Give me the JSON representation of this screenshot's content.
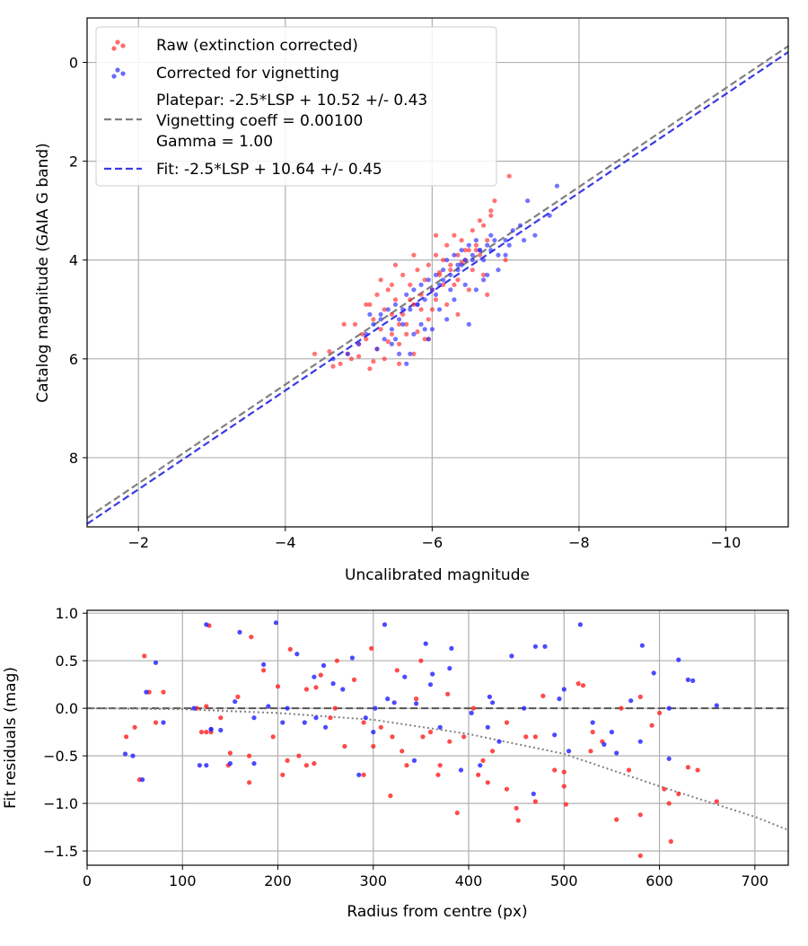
{
  "chart_data": [
    {
      "type": "scatter",
      "title": "",
      "xlabel": "Uncalibrated magnitude",
      "ylabel": "Catalog magnitude (GAIA G band)",
      "xlim": [
        -1.3,
        -10.85
      ],
      "ylim": [
        9.4,
        -0.9
      ],
      "x_ticks": [
        -2,
        -4,
        -6,
        -8,
        -10
      ],
      "x_tick_labels": [
        "−2",
        "−4",
        "−6",
        "−8",
        "−10"
      ],
      "y_ticks": [
        0,
        2,
        4,
        6,
        8
      ],
      "y_tick_labels": [
        "0",
        "2",
        "4",
        "6",
        "8"
      ],
      "grid": true,
      "legend_position": "top-left",
      "legend": [
        {
          "label": "Raw (extinction corrected)",
          "kind": "scatter",
          "color": "#ff2a2a"
        },
        {
          "label": "Corrected for vignetting",
          "kind": "scatter",
          "color": "#2a2aff"
        },
        {
          "label_lines": [
            "Platepar: -2.5*LSP + 10.52 +/- 0.43",
            "Vignetting coeff = 0.00100",
            "Gamma = 1.00"
          ],
          "kind": "dashed",
          "color": "#808080"
        },
        {
          "label": "Fit: -2.5*LSP + 10.64 +/- 0.45",
          "kind": "dashed",
          "color": "#3a3ae8"
        }
      ],
      "lines": [
        {
          "name": "Platepar",
          "intercept": 10.52,
          "slope": 1.0,
          "color": "#808080"
        },
        {
          "name": "Fit",
          "intercept": 10.64,
          "slope": 1.0,
          "color": "#3a3ae8"
        }
      ],
      "series": [
        {
          "name": "Raw (extinction corrected)",
          "color": "#ff2a2a",
          "x": [
            -4.4,
            -4.65,
            -4.6,
            -4.75,
            -4.9,
            -5.0,
            -4.95,
            -5.1,
            -5.15,
            -5.2,
            -5.25,
            -5.3,
            -5.35,
            -5.4,
            -5.45,
            -5.5,
            -5.55,
            -5.6,
            -5.65,
            -5.7,
            -5.75,
            -5.8,
            -5.85,
            -5.9,
            -5.95,
            -6.0,
            -6.05,
            -6.1,
            -6.15,
            -6.2,
            -6.25,
            -6.3,
            -6.35,
            -6.4,
            -6.45,
            -6.5,
            -6.55,
            -6.6,
            -6.65,
            -6.7,
            -6.75,
            -6.8,
            -6.85,
            -5.25,
            -5.35,
            -5.45,
            -5.55,
            -5.65,
            -5.75,
            -5.85,
            -5.95,
            -6.05,
            -6.15,
            -6.25,
            -6.35,
            -6.45,
            -6.55,
            -6.65,
            -5.15,
            -5.05,
            -5.6,
            -5.9,
            -6.2,
            -6.5,
            -6.8,
            -5.3,
            -5.5,
            -5.7,
            -6.0,
            -6.3,
            -6.6,
            -7.0,
            -5.0,
            -5.2,
            -5.4,
            -5.8,
            -6.1,
            -6.4,
            -6.7,
            -4.8,
            -4.85,
            -5.55,
            -5.95,
            -6.35,
            -6.75,
            -7.05,
            -5.1,
            -5.45,
            -5.75,
            -6.05
          ],
          "y": [
            5.9,
            6.15,
            5.85,
            6.1,
            6.0,
            5.7,
            5.3,
            5.6,
            4.9,
            5.2,
            4.7,
            5.4,
            5.0,
            4.6,
            5.1,
            4.8,
            5.3,
            4.3,
            5.5,
            4.5,
            4.9,
            4.2,
            4.7,
            4.4,
            4.1,
            4.6,
            3.9,
            4.3,
            4.0,
            3.7,
            4.2,
            3.5,
            3.9,
            3.6,
            4.0,
            3.8,
            3.4,
            3.7,
            3.9,
            3.3,
            3.6,
            3.1,
            2.8,
            5.8,
            6.0,
            5.5,
            5.7,
            5.3,
            5.9,
            5.0,
            5.2,
            4.8,
            4.5,
            4.1,
            4.4,
            3.8,
            4.2,
            3.2,
            6.2,
            5.5,
            5.1,
            5.6,
            4.9,
            4.6,
            3.0,
            4.4,
            4.1,
            4.8,
            5.0,
            4.5,
            3.8,
            4.0,
            5.95,
            6.05,
            5.65,
            5.45,
            4.25,
            4.05,
            4.3,
            5.3,
            5.9,
            6.1,
            5.6,
            5.1,
            4.7,
            2.3,
            4.9,
            4.5,
            3.9,
            3.5
          ]
        },
        {
          "name": "Corrected for vignetting",
          "color": "#2a2aff",
          "x": [
            -4.65,
            -4.85,
            -5.0,
            -5.1,
            -5.2,
            -5.25,
            -5.3,
            -5.35,
            -5.4,
            -5.45,
            -5.5,
            -5.55,
            -5.6,
            -5.65,
            -5.7,
            -5.75,
            -5.8,
            -5.85,
            -5.9,
            -5.95,
            -6.0,
            -6.05,
            -6.1,
            -6.15,
            -6.2,
            -6.25,
            -6.3,
            -6.35,
            -6.4,
            -6.45,
            -6.5,
            -6.55,
            -6.6,
            -6.65,
            -6.7,
            -6.75,
            -6.8,
            -6.9,
            -7.0,
            -7.1,
            -7.2,
            -7.4,
            -7.6,
            -7.7,
            -5.45,
            -5.55,
            -5.65,
            -5.75,
            -5.85,
            -5.95,
            -6.05,
            -6.15,
            -6.25,
            -6.35,
            -6.45,
            -6.55,
            -6.65,
            -6.75,
            -6.85,
            -7.0,
            -7.25,
            -5.15,
            -5.3,
            -5.5,
            -5.7,
            -5.9,
            -6.1,
            -6.3,
            -6.5,
            -6.7,
            -6.9,
            -7.05,
            -5.6,
            -5.8,
            -6.0,
            -6.2,
            -6.4,
            -6.6,
            -6.8,
            -7.3
          ],
          "y": [
            6.0,
            5.9,
            5.7,
            5.5,
            5.3,
            5.8,
            5.1,
            5.6,
            5.0,
            5.4,
            4.9,
            5.2,
            5.3,
            4.7,
            5.0,
            4.6,
            4.9,
            4.5,
            4.8,
            4.4,
            4.6,
            4.3,
            4.5,
            4.2,
            4.0,
            4.3,
            3.9,
            4.1,
            3.8,
            4.0,
            3.7,
            3.9,
            3.6,
            3.8,
            4.0,
            3.7,
            3.5,
            3.9,
            3.6,
            3.4,
            3.3,
            3.5,
            3.1,
            2.5,
            5.7,
            5.9,
            6.1,
            5.5,
            5.3,
            5.6,
            4.7,
            4.4,
            4.6,
            4.2,
            4.5,
            4.0,
            3.8,
            4.3,
            3.6,
            3.9,
            3.6,
            5.1,
            5.2,
            5.6,
            5.9,
            5.4,
            5.0,
            4.8,
            5.3,
            4.4,
            4.2,
            3.7,
            5.0,
            4.9,
            5.4,
            5.2,
            4.1,
            4.6,
            3.8,
            2.8
          ]
        }
      ]
    },
    {
      "type": "scatter",
      "title": "",
      "xlabel": "Radius from centre (px)",
      "ylabel": "Fit residuals (mag)",
      "xlim": [
        0,
        735
      ],
      "ylim": [
        -1.65,
        1.03
      ],
      "x_ticks": [
        0,
        100,
        200,
        300,
        400,
        500,
        600,
        700
      ],
      "x_tick_labels": [
        "0",
        "100",
        "200",
        "300",
        "400",
        "500",
        "600",
        "700"
      ],
      "y_ticks": [
        1.0,
        0.5,
        0.0,
        -0.5,
        -1.0,
        -1.5
      ],
      "y_tick_labels": [
        "1.0",
        "0.5",
        "0.0",
        "−0.5",
        "−1.0",
        "−1.5"
      ],
      "grid": true,
      "reference_lines": [
        {
          "name": "zero",
          "kind": "dashed",
          "value": 0.0,
          "color": "#555555"
        },
        {
          "name": "vignetting model",
          "kind": "dotted",
          "x": [
            0,
            100,
            200,
            300,
            400,
            500,
            600,
            700,
            735
          ],
          "y": [
            0,
            -0.01,
            -0.05,
            -0.12,
            -0.27,
            -0.48,
            -0.82,
            -1.14,
            -1.28
          ],
          "color": "#808080"
        }
      ],
      "series": [
        {
          "name": "Raw (extinction corrected)",
          "color": "#ff2a2a",
          "x": [
            41,
            50,
            55,
            60,
            72,
            80,
            115,
            120,
            128,
            140,
            148,
            158,
            172,
            185,
            195,
            205,
            213,
            222,
            230,
            238,
            245,
            255,
            262,
            270,
            280,
            290,
            298,
            308,
            318,
            325,
            335,
            345,
            352,
            360,
            368,
            378,
            388,
            395,
            405,
            415,
            425,
            440,
            452,
            460,
            470,
            478,
            490,
            502,
            515,
            528,
            540,
            555,
            568,
            580,
            592,
            605,
            612,
            620,
            630,
            640,
            660,
            580,
            530,
            470,
            410,
            350,
            290,
            230,
            170,
            125,
            65,
            130,
            150,
            200,
            260,
            320,
            380,
            440,
            500,
            560,
            610,
            125,
            210,
            300,
            370,
            450,
            520,
            600,
            170,
            240,
            330,
            420,
            500,
            580
          ],
          "y": [
            -0.3,
            -0.2,
            -0.75,
            0.55,
            -0.15,
            0.17,
            0.0,
            -0.25,
            0.87,
            -0.1,
            -0.6,
            0.12,
            0.75,
            0.4,
            -0.3,
            -0.7,
            0.62,
            -0.5,
            0.2,
            -0.58,
            0.35,
            -0.1,
            0.5,
            -0.4,
            0.3,
            -0.7,
            0.63,
            -0.2,
            -0.92,
            0.4,
            -0.6,
            0.1,
            -0.3,
            -0.25,
            -0.7,
            0.15,
            -1.1,
            -0.3,
            0.0,
            -0.55,
            -0.45,
            -0.85,
            -1.18,
            -0.3,
            -0.98,
            0.13,
            -0.65,
            -1.01,
            0.26,
            -0.45,
            -0.35,
            -1.17,
            -0.65,
            -1.12,
            -0.18,
            -0.85,
            -1.4,
            -0.9,
            -0.62,
            -0.65,
            -0.98,
            -1.55,
            -0.25,
            -0.3,
            -0.7,
            0.5,
            -0.15,
            -0.6,
            -0.5,
            0.02,
            0.17,
            -0.25,
            -0.47,
            0.23,
            0.0,
            -0.3,
            -0.35,
            -0.15,
            -0.82,
            0.0,
            -1.0,
            -0.25,
            -0.55,
            -0.4,
            -0.6,
            -1.05,
            0.24,
            -0.05,
            -0.78,
            0.22,
            -0.45,
            -0.78,
            -0.67,
            0.12
          ]
        },
        {
          "name": "Corrected for vignetting",
          "color": "#2a2aff",
          "x": [
            40,
            48,
            58,
            62,
            72,
            80,
            112,
            118,
            125,
            130,
            140,
            150,
            160,
            175,
            185,
            198,
            210,
            220,
            228,
            238,
            248,
            258,
            268,
            278,
            292,
            302,
            312,
            322,
            333,
            343,
            355,
            362,
            370,
            382,
            392,
            403,
            412,
            422,
            432,
            445,
            458,
            468,
            480,
            495,
            505,
            517,
            530,
            542,
            555,
            570,
            582,
            594,
            610,
            620,
            635,
            660,
            125,
            155,
            175,
            205,
            240,
            285,
            315,
            345,
            380,
            425,
            470,
            500,
            550,
            610,
            130,
            190,
            250,
            300,
            360,
            420,
            490,
            580,
            630
          ],
          "y": [
            -0.48,
            -0.5,
            -0.75,
            0.17,
            0.48,
            -0.15,
            0.0,
            -0.6,
            0.88,
            -0.22,
            -0.23,
            -0.58,
            0.8,
            -0.58,
            0.46,
            0.9,
            0.0,
            0.57,
            -0.15,
            0.33,
            0.45,
            0.26,
            0.2,
            0.53,
            -0.1,
            0.0,
            0.88,
            0.06,
            0.33,
            -0.55,
            0.68,
            0.36,
            -0.2,
            0.63,
            -0.65,
            -0.05,
            -0.6,
            0.12,
            -0.35,
            0.55,
            0.0,
            -0.9,
            0.65,
            0.1,
            -0.45,
            0.88,
            -0.15,
            -0.38,
            -0.47,
            0.08,
            0.66,
            0.37,
            0.0,
            0.51,
            0.29,
            0.03,
            -0.6,
            0.07,
            -0.1,
            -0.15,
            -0.1,
            -0.7,
            0.1,
            0.05,
            0.42,
            0.06,
            0.65,
            0.2,
            -0.25,
            -0.53,
            -0.22,
            0.02,
            -0.2,
            -0.25,
            0.25,
            -0.2,
            -0.28,
            -0.35,
            0.3
          ]
        }
      ]
    }
  ]
}
